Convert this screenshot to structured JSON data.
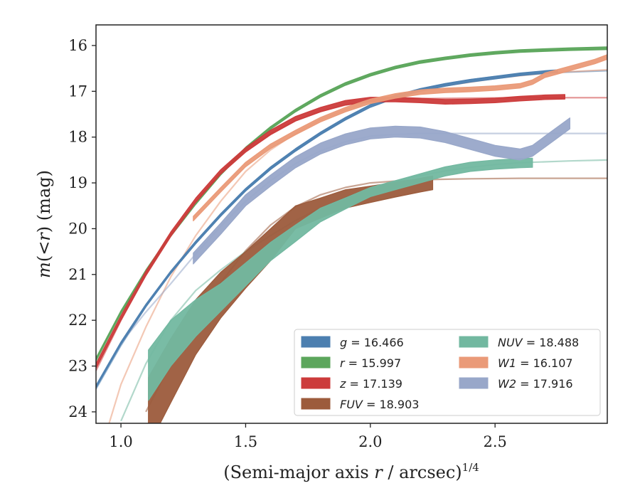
{
  "chart_data": {
    "type": "line",
    "xlabel": "(Semi-major axis r / arcsec)",
    "xlabel_prefix": "(Semi-major axis ",
    "xlabel_var": "r",
    "xlabel_suffix": " / arcsec)",
    "xlabel_exp": "1/4",
    "ylabel": "m(< r) (mag)",
    "ylabel_prefix": "m",
    "ylabel_mid": "(<",
    "ylabel_var": "r",
    "ylabel_suffix": ") (mag)",
    "xlim": [
      0.9,
      2.95
    ],
    "ylim": [
      24.25,
      15.55
    ],
    "y_inverted": true,
    "grid": false,
    "legend_position": "lower-right",
    "x_ticks": [
      1.0,
      1.5,
      2.0,
      2.5
    ],
    "x_tick_labels": [
      "1.0",
      "1.5",
      "2.0",
      "2.5"
    ],
    "y_ticks": [
      16,
      17,
      18,
      19,
      20,
      21,
      22,
      23,
      24
    ],
    "y_tick_labels": [
      "16",
      "17",
      "18",
      "19",
      "20",
      "21",
      "22",
      "23",
      "24"
    ],
    "legend": [
      {
        "band": "g",
        "value": "16.466",
        "label": "g = 16.466",
        "color": "#4c7fb0"
      },
      {
        "band": "r",
        "value": "15.997",
        "label": "r = 15.997",
        "color": "#5ca65c"
      },
      {
        "band": "z",
        "value": "17.139",
        "label": "z = 17.139",
        "color": "#cc3b3b"
      },
      {
        "band": "FUV",
        "value": "18.903",
        "label": "FUV = 18.903",
        "color": "#9c5b3c"
      },
      {
        "band": "NUV",
        "value": "18.488",
        "label": "NUV = 18.488",
        "color": "#72b8a0"
      },
      {
        "band": "W1",
        "value": "16.107",
        "label": "W1 = 16.107",
        "color": "#ea9a78"
      },
      {
        "band": "W2",
        "value": "17.916",
        "label": "W2 = 17.916",
        "color": "#98a7c9"
      }
    ],
    "series": [
      {
        "name": "g",
        "color": "#4c7fb0",
        "model": {
          "x": [
            0.9,
            1.0,
            1.1,
            1.2,
            1.3,
            1.4,
            1.5,
            1.6,
            1.7,
            1.8,
            1.9,
            2.0,
            2.1,
            2.2,
            2.3,
            2.4,
            2.5,
            2.6,
            2.7,
            2.8,
            2.95
          ],
          "y": [
            23.5,
            22.55,
            21.7,
            20.95,
            20.3,
            19.7,
            19.15,
            18.68,
            18.28,
            17.92,
            17.6,
            17.3,
            17.1,
            16.95,
            16.84,
            16.75,
            16.68,
            16.63,
            16.6,
            16.58,
            16.55
          ]
        },
        "data": {
          "x": [
            0.9,
            1.0,
            1.1,
            1.2,
            1.3,
            1.4,
            1.5,
            1.6,
            1.7,
            1.8,
            1.9,
            2.0,
            2.1,
            2.2,
            2.3,
            2.4,
            2.5,
            2.6,
            2.7,
            2.75
          ],
          "y": [
            23.45,
            22.5,
            21.68,
            20.95,
            20.3,
            19.7,
            19.15,
            18.68,
            18.28,
            17.92,
            17.6,
            17.32,
            17.12,
            16.97,
            16.86,
            16.77,
            16.7,
            16.63,
            16.58,
            16.56
          ],
          "err": 0.03
        }
      },
      {
        "name": "r",
        "color": "#5ca65c",
        "model": {
          "x": [
            0.9,
            1.0,
            1.1,
            1.2,
            1.3,
            1.4,
            1.5,
            1.6,
            1.7,
            1.8,
            1.9,
            2.0,
            2.1,
            2.2,
            2.3,
            2.4,
            2.5,
            2.6,
            2.7,
            2.8,
            2.95
          ],
          "y": [
            22.9,
            21.85,
            20.95,
            20.15,
            19.45,
            18.8,
            18.25,
            17.8,
            17.42,
            17.1,
            16.84,
            16.64,
            16.48,
            16.36,
            16.28,
            16.21,
            16.16,
            16.12,
            16.1,
            16.09,
            16.08
          ]
        },
        "data": {
          "x": [
            0.9,
            1.0,
            1.1,
            1.2,
            1.3,
            1.4,
            1.5,
            1.6,
            1.7,
            1.8,
            1.9,
            2.0,
            2.1,
            2.2,
            2.3,
            2.4,
            2.5,
            2.6,
            2.7,
            2.8,
            2.95
          ],
          "y": [
            22.85,
            21.82,
            20.93,
            20.14,
            19.44,
            18.8,
            18.25,
            17.8,
            17.42,
            17.1,
            16.84,
            16.64,
            16.48,
            16.36,
            16.28,
            16.21,
            16.16,
            16.12,
            16.1,
            16.08,
            16.06
          ],
          "err": 0.03
        }
      },
      {
        "name": "z",
        "color": "#cc3b3b",
        "model": {
          "x": [
            0.9,
            1.0,
            1.1,
            1.2,
            1.3,
            1.4,
            1.5,
            1.6,
            1.7,
            1.8,
            1.9,
            2.0,
            2.1,
            2.2,
            2.4,
            2.6,
            2.8,
            2.95
          ],
          "y": [
            23.1,
            22.0,
            21.0,
            20.15,
            19.4,
            18.78,
            18.3,
            17.92,
            17.64,
            17.44,
            17.3,
            17.22,
            17.18,
            17.16,
            17.15,
            17.14,
            17.14,
            17.14
          ]
        },
        "data": {
          "x": [
            0.9,
            1.0,
            1.1,
            1.2,
            1.3,
            1.4,
            1.5,
            1.6,
            1.7,
            1.8,
            1.9,
            2.0,
            2.1,
            2.2,
            2.3,
            2.4,
            2.5,
            2.6,
            2.7,
            2.78
          ],
          "y": [
            23.0,
            21.95,
            20.98,
            20.12,
            19.38,
            18.76,
            18.28,
            17.9,
            17.6,
            17.4,
            17.25,
            17.18,
            17.18,
            17.2,
            17.23,
            17.22,
            17.2,
            17.16,
            17.13,
            17.12
          ],
          "err": 0.05
        }
      },
      {
        "name": "FUV",
        "color": "#9c5b3c",
        "model": {
          "x": [
            1.1,
            1.2,
            1.3,
            1.4,
            1.5,
            1.6,
            1.7,
            1.8,
            1.9,
            2.0,
            2.1,
            2.2,
            2.4,
            2.6,
            2.8,
            2.95
          ],
          "y": [
            24.0,
            22.95,
            22.0,
            21.18,
            20.48,
            19.92,
            19.52,
            19.26,
            19.1,
            19.0,
            18.96,
            18.93,
            18.91,
            18.9,
            18.9,
            18.9
          ]
        },
        "data": {
          "x": [
            1.11,
            1.2,
            1.3,
            1.4,
            1.5,
            1.6,
            1.7,
            1.8,
            1.9,
            2.0,
            2.1,
            2.2,
            2.25
          ],
          "y": [
            24.0,
            23.1,
            22.15,
            21.45,
            20.9,
            20.35,
            19.75,
            19.55,
            19.35,
            19.25,
            19.15,
            19.05,
            19.0
          ],
          "err_lo": [
            0.75,
            0.7,
            0.6,
            0.5,
            0.4,
            0.35,
            0.25,
            0.22,
            0.2,
            0.18,
            0.16,
            0.15,
            0.15
          ],
          "err_hi": [
            0.75,
            0.7,
            0.6,
            0.5,
            0.4,
            0.35,
            0.25,
            0.22,
            0.2,
            0.18,
            0.16,
            0.15,
            0.15
          ]
        }
      },
      {
        "name": "NUV",
        "color": "#72b8a0",
        "model": {
          "x": [
            1.0,
            1.1,
            1.2,
            1.3,
            1.4,
            1.5,
            1.6,
            1.7,
            1.8,
            1.9,
            2.0,
            2.1,
            2.2,
            2.3,
            2.4,
            2.5,
            2.6,
            2.8,
            2.95
          ],
          "y": [
            24.2,
            22.95,
            22.0,
            21.35,
            20.9,
            20.5,
            20.15,
            19.82,
            19.55,
            19.32,
            19.12,
            18.96,
            18.84,
            18.74,
            18.66,
            18.6,
            18.56,
            18.52,
            18.5
          ]
        },
        "data": {
          "x": [
            1.11,
            1.2,
            1.3,
            1.4,
            1.5,
            1.6,
            1.7,
            1.8,
            1.9,
            2.0,
            2.1,
            2.2,
            2.3,
            2.4,
            2.5,
            2.6,
            2.65
          ],
          "y": [
            23.2,
            22.5,
            21.95,
            21.5,
            21.0,
            20.5,
            20.1,
            19.7,
            19.45,
            19.2,
            19.05,
            18.9,
            18.75,
            18.65,
            18.6,
            18.57,
            18.56
          ],
          "err_lo": [
            0.55,
            0.5,
            0.4,
            0.3,
            0.25,
            0.2,
            0.18,
            0.15,
            0.12,
            0.1,
            0.1,
            0.1,
            0.1,
            0.1,
            0.1,
            0.1,
            0.1
          ],
          "err_hi": [
            0.55,
            0.5,
            0.4,
            0.3,
            0.25,
            0.2,
            0.18,
            0.15,
            0.12,
            0.1,
            0.1,
            0.1,
            0.1,
            0.1,
            0.1,
            0.1,
            0.1
          ]
        }
      },
      {
        "name": "W1",
        "color": "#ea9a78",
        "model": {
          "x": [
            0.95,
            1.0,
            1.1,
            1.2,
            1.3,
            1.4,
            1.5,
            1.6,
            1.7,
            1.8,
            1.9,
            2.0,
            2.1,
            2.2,
            2.3,
            2.4,
            2.5,
            2.6,
            2.7,
            2.8,
            2.95
          ],
          "y": [
            24.3,
            23.4,
            22.15,
            21.05,
            20.15,
            19.4,
            18.75,
            18.28,
            17.92,
            17.62,
            17.4,
            17.22,
            17.08,
            16.98,
            16.88,
            16.8,
            16.72,
            16.66,
            16.61,
            16.57,
            16.53
          ]
        },
        "data": {
          "x": [
            1.29,
            1.4,
            1.5,
            1.6,
            1.7,
            1.8,
            1.9,
            2.0,
            2.1,
            2.2,
            2.3,
            2.4,
            2.5,
            2.6,
            2.65,
            2.7,
            2.8,
            2.9,
            2.95
          ],
          "y": [
            19.78,
            19.15,
            18.6,
            18.2,
            17.9,
            17.62,
            17.4,
            17.22,
            17.1,
            17.02,
            16.98,
            16.96,
            16.93,
            16.88,
            16.8,
            16.65,
            16.5,
            16.35,
            16.25
          ],
          "err": 0.05
        }
      },
      {
        "name": "W2",
        "color": "#98a7c9",
        "model": {
          "x": [
            1.0,
            1.1,
            1.2,
            1.3,
            1.4,
            1.5,
            1.6,
            1.7,
            1.8,
            1.9,
            2.0,
            2.1,
            2.2,
            2.3,
            2.4,
            2.6,
            2.8,
            2.95
          ],
          "y": [
            22.5,
            21.82,
            21.2,
            20.55,
            19.95,
            19.4,
            18.95,
            18.58,
            18.3,
            18.1,
            17.98,
            17.94,
            17.92,
            17.92,
            17.92,
            17.92,
            17.92,
            17.92
          ]
        },
        "data": {
          "x": [
            1.29,
            1.4,
            1.5,
            1.6,
            1.7,
            1.8,
            1.9,
            2.0,
            2.1,
            2.2,
            2.3,
            2.4,
            2.5,
            2.6,
            2.65,
            2.7,
            2.75,
            2.8
          ],
          "y": [
            20.65,
            20.0,
            19.38,
            18.95,
            18.55,
            18.25,
            18.05,
            17.92,
            17.88,
            17.9,
            18.0,
            18.15,
            18.3,
            18.38,
            18.3,
            18.1,
            17.9,
            17.7
          ],
          "err": 0.12
        }
      }
    ]
  }
}
